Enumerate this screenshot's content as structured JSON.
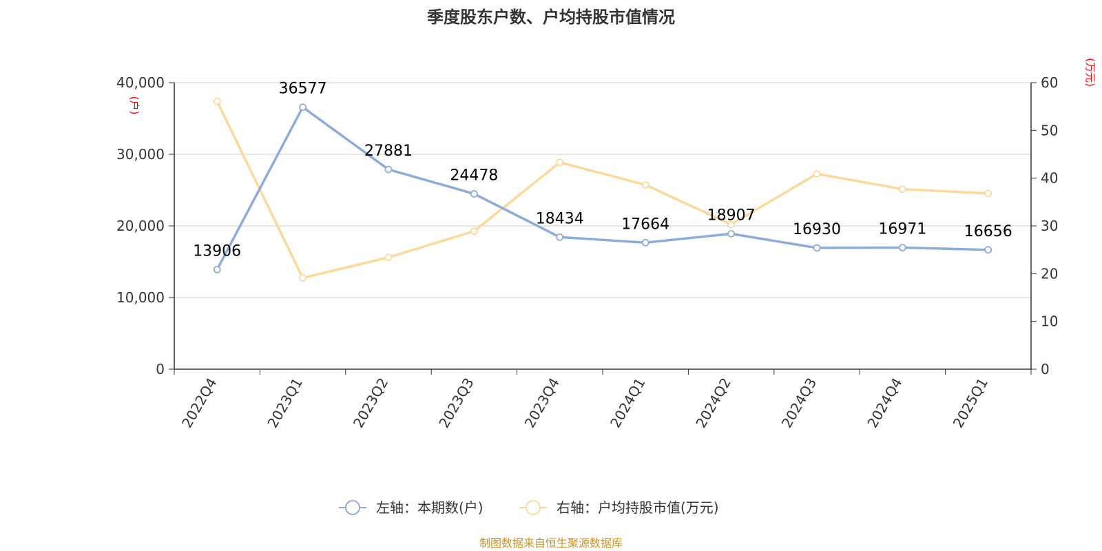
{
  "chart_data": {
    "type": "line",
    "title": "季度股东户数、户均持股市值情况",
    "categories": [
      "2022Q4",
      "2023Q1",
      "2023Q2",
      "2023Q3",
      "2023Q4",
      "2024Q1",
      "2024Q2",
      "2024Q3",
      "2024Q4",
      "2025Q1"
    ],
    "left_axis": {
      "unit": "(户)",
      "ylim": [
        0,
        40000
      ],
      "ticks": [
        "0",
        "10,000",
        "20,000",
        "30,000",
        "40,000"
      ]
    },
    "right_axis": {
      "unit": "(万元)",
      "ylim": [
        0,
        60
      ],
      "ticks": [
        "0",
        "10",
        "20",
        "30",
        "40",
        "50",
        "60"
      ]
    },
    "series": [
      {
        "name": "左轴：本期数(户)",
        "axis": "left",
        "color": "#8eacd8",
        "values": [
          13906,
          36577,
          27881,
          24478,
          18434,
          17664,
          18907,
          16930,
          16971,
          16656
        ],
        "labels": [
          "13906",
          "36577",
          "27881",
          "24478",
          "18434",
          "17664",
          "18907",
          "16930",
          "16971",
          "16656"
        ]
      },
      {
        "name": "右轴：户均持股市值(万元)",
        "axis": "right",
        "color": "#fbd99b",
        "values": [
          56.1,
          19.1,
          23.4,
          28.9,
          43.3,
          38.6,
          30.3,
          40.9,
          37.7,
          36.8
        ]
      }
    ],
    "grid": true,
    "legend_position": "bottom"
  },
  "source_text": "制图数据来自恒生聚源数据库",
  "colors": {
    "title": "#333333",
    "axis_unit": "#ff0000",
    "source": "#c8922a",
    "gridline": "#cccccc",
    "axis_line": "#333333"
  }
}
